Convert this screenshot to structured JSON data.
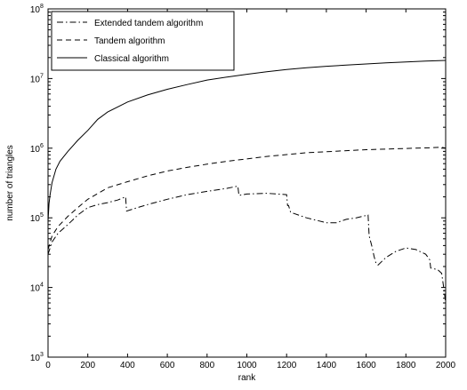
{
  "chart_data": {
    "type": "line",
    "title": "",
    "xlabel": "rank",
    "ylabel": "number of triangles",
    "xlim": [
      0,
      2000
    ],
    "ylim": [
      1000,
      100000000
    ],
    "yscale": "log",
    "grid": false,
    "legend_position": "top-left",
    "x_ticks": [
      0,
      200,
      400,
      600,
      800,
      1000,
      1200,
      1400,
      1600,
      1800,
      2000
    ],
    "x_tick_labels": [
      "0",
      "200",
      "400",
      "600",
      "800",
      "1000",
      "1200",
      "1400",
      "1600",
      "1800",
      "2000"
    ],
    "y_ticks": [
      1000,
      10000,
      100000,
      1000000,
      10000000,
      100000000
    ],
    "y_tick_base": "10",
    "y_tick_exponents": [
      "3",
      "4",
      "5",
      "6",
      "7",
      "8"
    ],
    "series": [
      {
        "name": "Extended tandem algorithm",
        "style": "dashdot",
        "points": [
          [
            0,
            30000
          ],
          [
            20,
            45000
          ],
          [
            50,
            60000
          ],
          [
            100,
            80000
          ],
          [
            150,
            110000
          ],
          [
            200,
            140000
          ],
          [
            250,
            155000
          ],
          [
            300,
            165000
          ],
          [
            350,
            180000
          ],
          [
            390,
            200000
          ],
          [
            395,
            125000
          ],
          [
            450,
            140000
          ],
          [
            500,
            155000
          ],
          [
            600,
            185000
          ],
          [
            700,
            215000
          ],
          [
            800,
            240000
          ],
          [
            900,
            265000
          ],
          [
            955,
            285000
          ],
          [
            960,
            210000
          ],
          [
            1000,
            220000
          ],
          [
            1100,
            225000
          ],
          [
            1200,
            215000
          ],
          [
            1205,
            150000
          ],
          [
            1210,
            150000
          ],
          [
            1220,
            120000
          ],
          [
            1300,
            100000
          ],
          [
            1400,
            85000
          ],
          [
            1450,
            85000
          ],
          [
            1500,
            95000
          ],
          [
            1550,
            100000
          ],
          [
            1610,
            110000
          ],
          [
            1615,
            55000
          ],
          [
            1630,
            38000
          ],
          [
            1640,
            28000
          ],
          [
            1650,
            22000
          ],
          [
            1660,
            21000
          ],
          [
            1700,
            27000
          ],
          [
            1750,
            33000
          ],
          [
            1800,
            37000
          ],
          [
            1850,
            35000
          ],
          [
            1900,
            30000
          ],
          [
            1920,
            25000
          ],
          [
            1925,
            19000
          ],
          [
            1960,
            18000
          ],
          [
            1980,
            16000
          ],
          [
            1990,
            10000
          ],
          [
            2000,
            6000
          ]
        ]
      },
      {
        "name": "Tandem algorithm",
        "style": "dashed",
        "points": [
          [
            0,
            35000
          ],
          [
            20,
            55000
          ],
          [
            50,
            75000
          ],
          [
            100,
            105000
          ],
          [
            150,
            140000
          ],
          [
            200,
            185000
          ],
          [
            300,
            270000
          ],
          [
            400,
            330000
          ],
          [
            500,
            400000
          ],
          [
            600,
            470000
          ],
          [
            700,
            530000
          ],
          [
            800,
            590000
          ],
          [
            900,
            650000
          ],
          [
            1000,
            700000
          ],
          [
            1100,
            760000
          ],
          [
            1200,
            810000
          ],
          [
            1300,
            860000
          ],
          [
            1400,
            890000
          ],
          [
            1500,
            920000
          ],
          [
            1600,
            950000
          ],
          [
            1700,
            970000
          ],
          [
            1800,
            990000
          ],
          [
            1900,
            1010000
          ],
          [
            1980,
            1030000
          ],
          [
            2000,
            1000000
          ]
        ]
      },
      {
        "name": "Classical algorithm",
        "style": "solid",
        "points": [
          [
            0,
            90000
          ],
          [
            5,
            160000
          ],
          [
            10,
            210000
          ],
          [
            20,
            320000
          ],
          [
            40,
            500000
          ],
          [
            60,
            650000
          ],
          [
            100,
            900000
          ],
          [
            150,
            1300000
          ],
          [
            200,
            1800000
          ],
          [
            250,
            2600000
          ],
          [
            300,
            3300000
          ],
          [
            400,
            4600000
          ],
          [
            500,
            5800000
          ],
          [
            600,
            7000000
          ],
          [
            700,
            8200000
          ],
          [
            800,
            9500000
          ],
          [
            900,
            10500000
          ],
          [
            1000,
            11500000
          ],
          [
            1100,
            12500000
          ],
          [
            1200,
            13500000
          ],
          [
            1300,
            14300000
          ],
          [
            1400,
            15000000
          ],
          [
            1500,
            15600000
          ],
          [
            1600,
            16200000
          ],
          [
            1700,
            16800000
          ],
          [
            1800,
            17300000
          ],
          [
            1900,
            17800000
          ],
          [
            2000,
            18200000
          ]
        ]
      }
    ]
  }
}
